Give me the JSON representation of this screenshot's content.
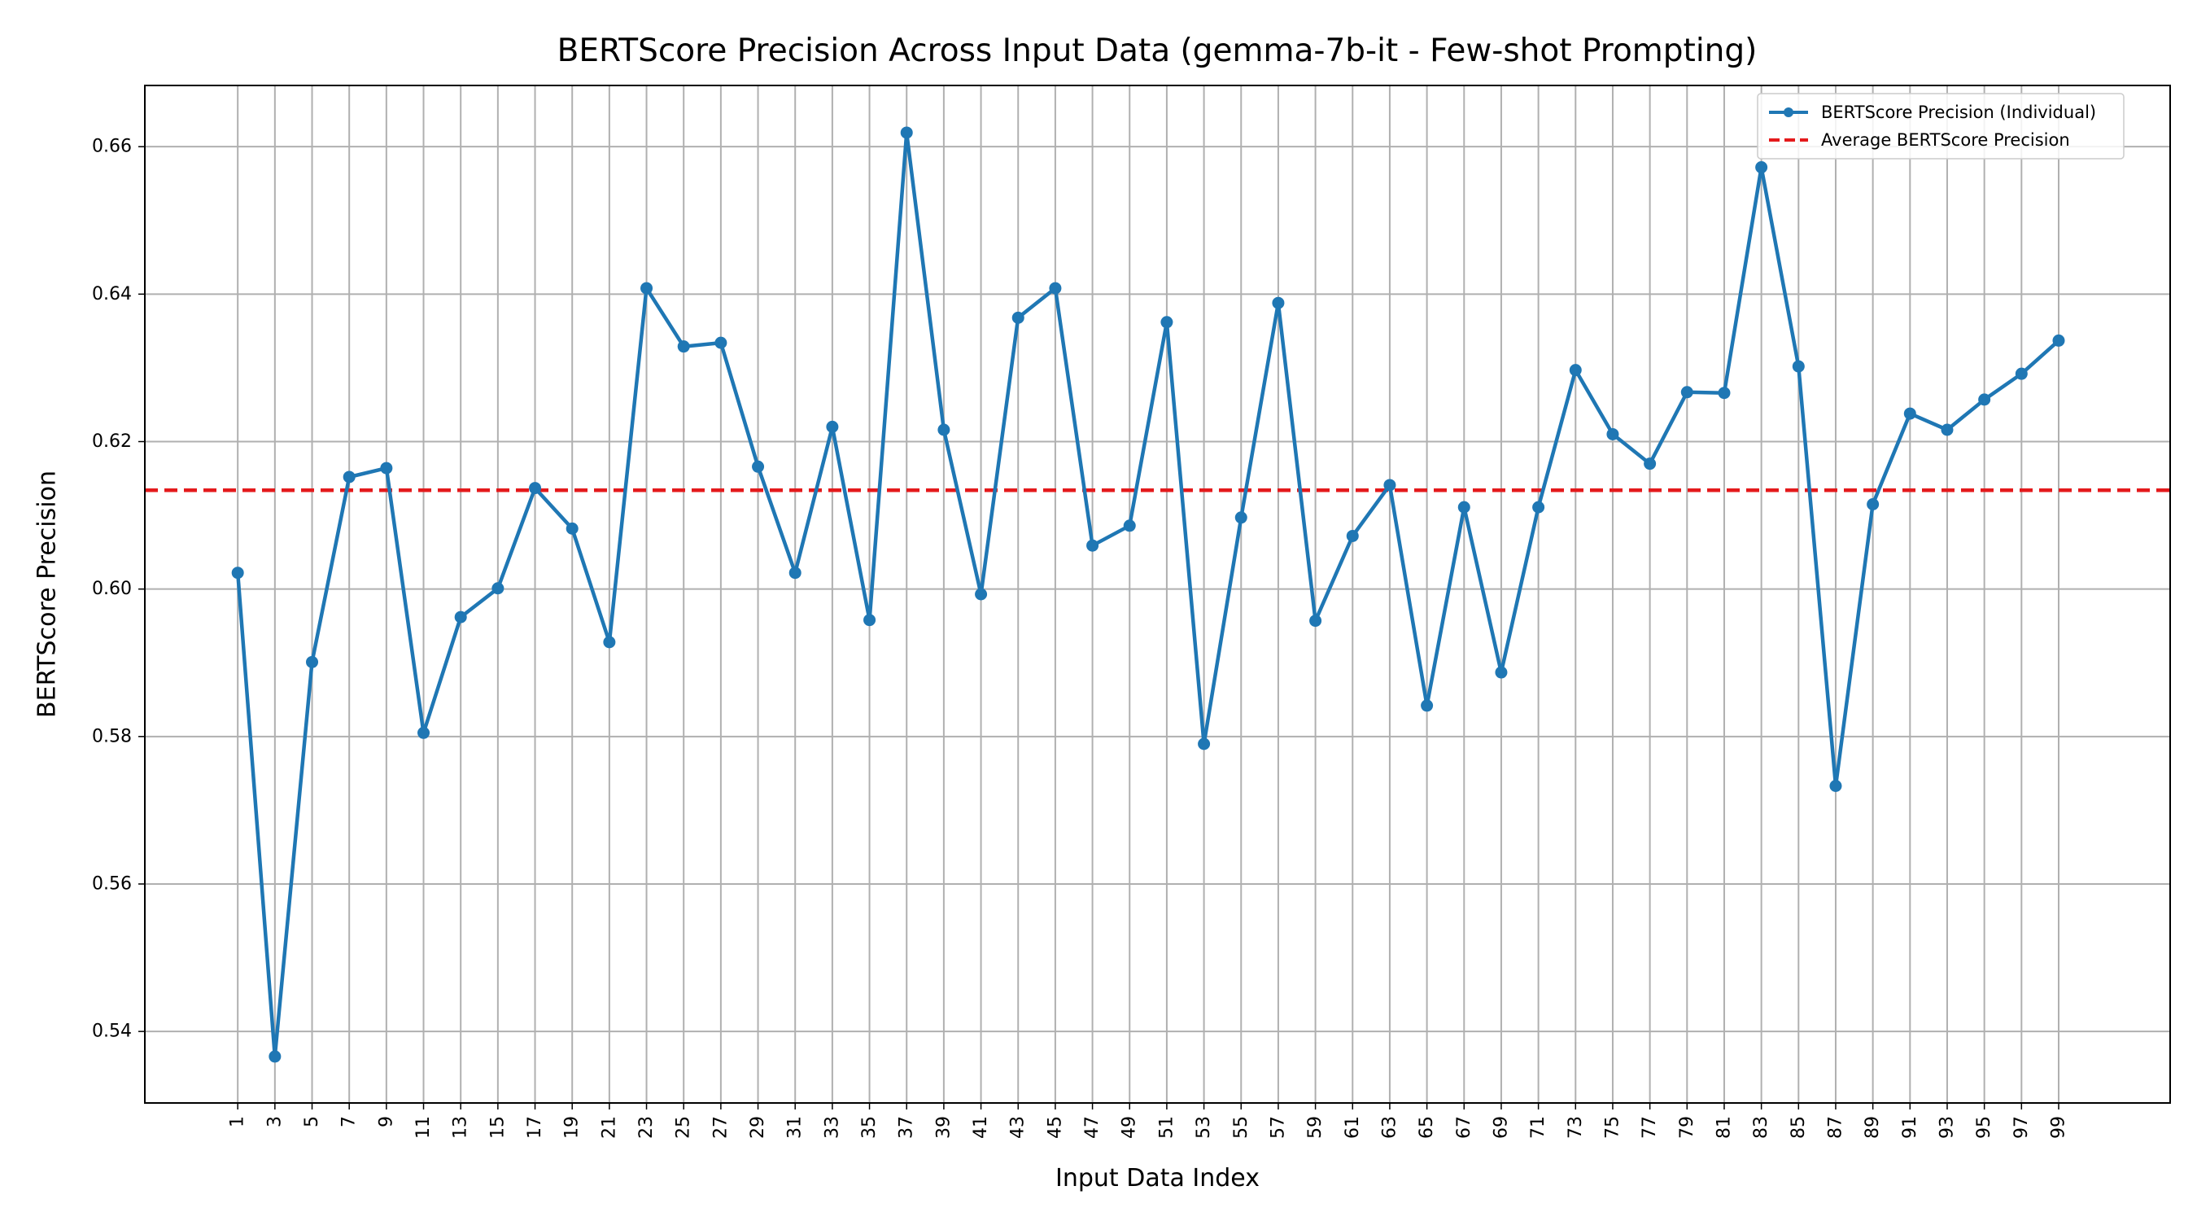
{
  "chart_data": {
    "type": "line",
    "title": "BERTScore Precision Across Input Data (gemma-7b-it - Few-shot Prompting)",
    "xlabel": "Input Data Index",
    "ylabel": "BERTScore Precision",
    "x": [
      1,
      3,
      5,
      7,
      9,
      11,
      13,
      15,
      17,
      19,
      21,
      23,
      25,
      27,
      29,
      31,
      33,
      35,
      37,
      39,
      41,
      43,
      45,
      47,
      49,
      51,
      53,
      55,
      57,
      59,
      61,
      63,
      65,
      67,
      69,
      71,
      73,
      75,
      77,
      79,
      81,
      83,
      85,
      87,
      89,
      91,
      93,
      95,
      97,
      99
    ],
    "xlim": [
      -4,
      105
    ],
    "ylim": [
      0.5303,
      0.6683
    ],
    "x_ticks": [
      1,
      3,
      5,
      7,
      9,
      11,
      13,
      15,
      17,
      19,
      21,
      23,
      25,
      27,
      29,
      31,
      33,
      35,
      37,
      39,
      41,
      43,
      45,
      47,
      49,
      51,
      53,
      55,
      57,
      59,
      61,
      63,
      65,
      67,
      69,
      71,
      73,
      75,
      77,
      79,
      81,
      83,
      85,
      87,
      89,
      91,
      93,
      95,
      97,
      99
    ],
    "y_ticks": [
      0.54,
      0.56,
      0.58,
      0.6,
      0.62,
      0.64,
      0.66
    ],
    "y_tick_labels": [
      "0.54",
      "0.56",
      "0.58",
      "0.60",
      "0.62",
      "0.64",
      "0.66"
    ],
    "grid": true,
    "legend_position": "top-right",
    "series": [
      {
        "name": "BERTScore Precision (Individual)",
        "color": "#1f77b4",
        "style": "solid-with-markers",
        "values": [
          0.6022,
          0.5366,
          0.5901,
          0.6152,
          0.6164,
          0.5805,
          0.5962,
          0.6001,
          0.6137,
          0.6082,
          0.5928,
          0.6408,
          0.6329,
          0.6334,
          0.6166,
          0.6022,
          0.622,
          0.5958,
          0.6619,
          0.6216,
          0.5993,
          0.6368,
          0.6408,
          0.6059,
          0.6086,
          0.6362,
          0.579,
          0.6097,
          0.6388,
          0.5957,
          0.6072,
          0.6141,
          0.5842,
          0.6111,
          0.5887,
          0.6111,
          0.6297,
          0.621,
          0.617,
          0.6267,
          0.6266,
          0.6572,
          0.6302,
          0.5733,
          0.6115,
          0.6238,
          0.6216,
          0.6257,
          0.6292,
          0.6337
        ]
      },
      {
        "name": "Average BERTScore Precision",
        "color": "#e41a1c",
        "style": "dashed",
        "constant": 0.6134
      }
    ]
  }
}
